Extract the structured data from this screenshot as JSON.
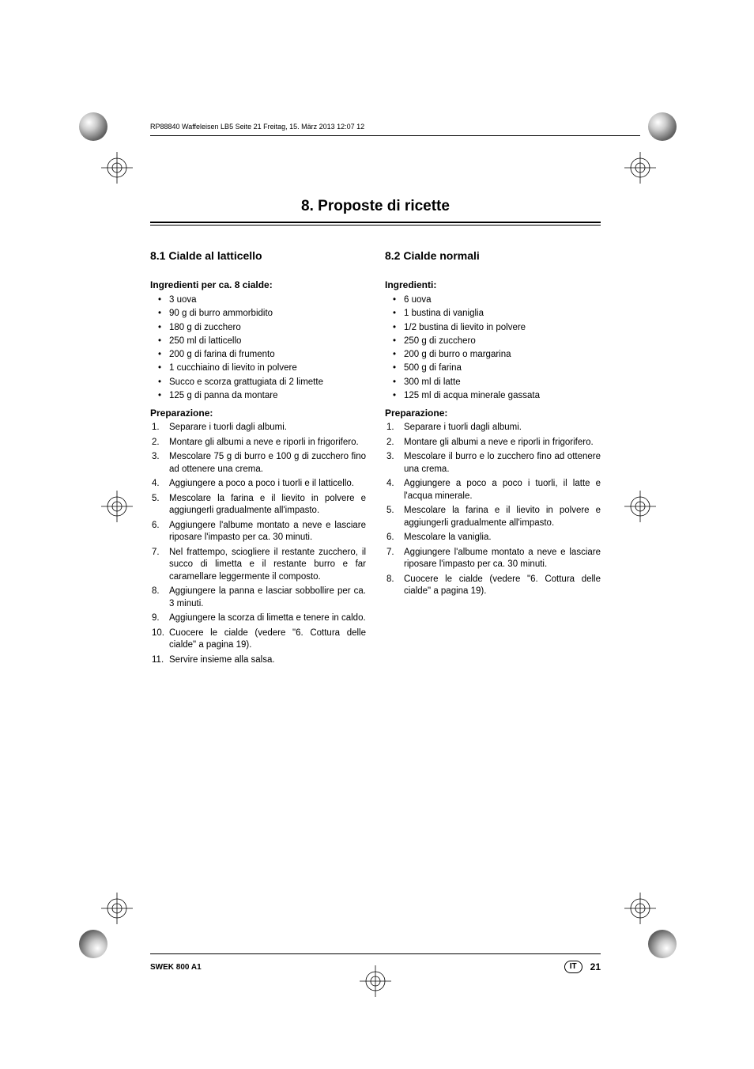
{
  "meta": {
    "header_text": "RP88840 Waffeleisen LB5  Seite 21  Freitag, 15. März 2013  12:07 12"
  },
  "chapter": {
    "title": "8. Proposte di ricette"
  },
  "col1": {
    "section_title": "8.1 Cialde al latticello",
    "ingredients_heading": "Ingredienti per ca. 8 cialde:",
    "ingredients": [
      "3 uova",
      "90 g di burro ammorbidito",
      "180 g di zucchero",
      "250 ml di latticello",
      "200 g di farina di frumento",
      "1 cucchiaino di lievito in polvere",
      "Succo e scorza grattugiata di 2 limette",
      "125 g di panna da montare"
    ],
    "prep_heading": "Preparazione:",
    "steps": [
      "Separare i tuorli dagli albumi.",
      "Montare gli albumi a neve e riporli in frigorifero.",
      "Mescolare 75 g di burro e 100 g di zucchero fino ad ottenere una crema.",
      "Aggiungere a poco a poco i tuorli e il latticello.",
      "Mescolare la farina e il lievito in polvere e aggiungerli gradualmente all'impasto.",
      "Aggiungere l'albume montato a neve e lasciare riposare l'impasto per ca. 30 minuti.",
      "Nel frattempo, sciogliere il restante zucchero, il succo di limetta e il restante burro e far caramellare leggermente il composto.",
      "Aggiungere la panna e lasciar sobbollire per ca. 3 minuti.",
      "Aggiungere la scorza di limetta e tenere in caldo.",
      "Cuocere le cialde (vedere \"6. Cottura delle cialde\" a pagina 19).",
      "Servire insieme alla salsa."
    ]
  },
  "col2": {
    "section_title": "8.2 Cialde normali",
    "ingredients_heading": "Ingredienti:",
    "ingredients": [
      "6 uova",
      "1 bustina di vaniglia",
      "1/2 bustina di lievito in polvere",
      "250 g di zucchero",
      "200 g di burro o margarina",
      "500 g di farina",
      "300 ml di latte",
      "125 ml di acqua minerale gassata"
    ],
    "prep_heading": "Preparazione:",
    "steps": [
      "Separare i tuorli dagli albumi.",
      "Montare gli albumi a neve e riporli in frigorifero.",
      "Mescolare il burro e lo zucchero fino ad ottenere una crema.",
      "Aggiungere a poco a poco i tuorli, il latte e l'acqua minerale.",
      "Mescolare la farina e il lievito in polvere e aggiungerli gradualmente all'impasto.",
      "Mescolare la vaniglia.",
      "Aggiungere l'albume montato a neve e lasciare riposare l'impasto per ca. 30 minuti.",
      "Cuocere le cialde (vedere \"6. Cottura delle cialde\" a pagina 19)."
    ]
  },
  "footer": {
    "model": "SWEK 800 A1",
    "lang": "IT",
    "page": "21"
  }
}
